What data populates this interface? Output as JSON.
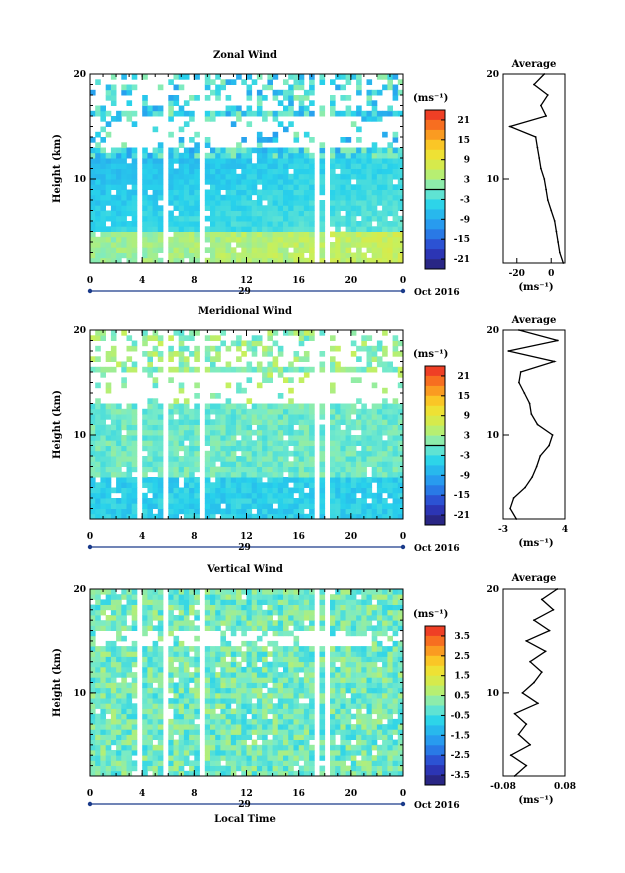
{
  "chart_data": [
    {
      "type": "heatmap",
      "title": "Zonal Wind",
      "ylabel": "Height (km)",
      "ylim": [
        2,
        20
      ],
      "xlim": [
        0,
        24
      ],
      "x_ticks": [
        "0",
        "4",
        "8",
        "12",
        "16",
        "20",
        "0"
      ],
      "y_ticks": [
        "10",
        "20"
      ],
      "date_labels": {
        "day": "29",
        "month": "Oct 2016"
      },
      "colorbar": {
        "unit": "(ms⁻¹)",
        "ticks": [
          "21",
          "15",
          "9",
          "3",
          "-3",
          "-9",
          "-15",
          "-21"
        ],
        "range": [
          -24,
          24
        ]
      },
      "profile": {
        "title": "Average",
        "unit": "(ms⁻¹)",
        "x_ticks": [
          "-20",
          "0"
        ],
        "xlim": [
          -28,
          8
        ],
        "y_ticks": [
          "10",
          "20"
        ],
        "heights": [
          2,
          3,
          4,
          5,
          6,
          7,
          8,
          9,
          10,
          11,
          12,
          13,
          14,
          15,
          16,
          17,
          18,
          19,
          20
        ],
        "values": [
          7,
          5,
          4,
          3,
          2,
          0,
          -2,
          -3,
          -4,
          -6,
          -7,
          -8,
          -9,
          -24,
          -3,
          -6,
          -2,
          -10,
          -4
        ]
      }
    },
    {
      "type": "heatmap",
      "title": "Meridional Wind",
      "ylabel": "Height (km)",
      "ylim": [
        2,
        20
      ],
      "xlim": [
        0,
        24
      ],
      "x_ticks": [
        "0",
        "4",
        "8",
        "12",
        "16",
        "20",
        "0"
      ],
      "y_ticks": [
        "10",
        "20"
      ],
      "date_labels": {
        "day": "29",
        "month": "Oct 2016"
      },
      "colorbar": {
        "unit": "(ms⁻¹)",
        "ticks": [
          "21",
          "15",
          "9",
          "3",
          "-3",
          "-9",
          "-15",
          "-21"
        ],
        "range": [
          -24,
          24
        ]
      },
      "profile": {
        "title": "Average",
        "unit": "(ms⁻¹)",
        "x_ticks": [
          "-3",
          "4"
        ],
        "xlim": [
          -3,
          4
        ],
        "y_ticks": [
          "10",
          "20"
        ],
        "heights": [
          2,
          3,
          4,
          5,
          6,
          7,
          8,
          9,
          10,
          11,
          12,
          13,
          14,
          15,
          16,
          17,
          18,
          19,
          20
        ],
        "values": [
          -1.5,
          -2.2,
          -1.8,
          -0.5,
          0.3,
          0.8,
          1.2,
          2.2,
          2.6,
          0.9,
          0.2,
          0.0,
          -0.6,
          -1.2,
          -1.0,
          2.8,
          -2.4,
          3.2,
          -1.2
        ]
      }
    },
    {
      "type": "heatmap",
      "title": "Vertical Wind",
      "ylabel": "Height (km)",
      "xlabel": "Local Time",
      "ylim": [
        2,
        20
      ],
      "xlim": [
        0,
        24
      ],
      "x_ticks": [
        "0",
        "4",
        "8",
        "12",
        "16",
        "20",
        "0"
      ],
      "y_ticks": [
        "10",
        "20"
      ],
      "date_labels": {
        "day": "29",
        "month": "Oct 2016"
      },
      "colorbar": {
        "unit": "(ms⁻¹)",
        "ticks": [
          "3.5",
          "2.5",
          "1.5",
          "0.5",
          "-0.5",
          "-1.5",
          "-2.5",
          "-3.5"
        ],
        "range": [
          -4,
          4
        ]
      },
      "profile": {
        "title": "Average",
        "unit": "(ms⁻¹)",
        "x_ticks": [
          "-0.08",
          "0.08"
        ],
        "xlim": [
          -0.08,
          0.08
        ],
        "y_ticks": [
          "10",
          "20"
        ],
        "heights": [
          2,
          3,
          4,
          5,
          6,
          7,
          8,
          9,
          10,
          11,
          12,
          13,
          14,
          15,
          16,
          17,
          18,
          19,
          20
        ],
        "values": [
          -0.05,
          -0.02,
          -0.06,
          -0.01,
          -0.04,
          -0.02,
          -0.05,
          0.01,
          -0.03,
          0.0,
          0.02,
          -0.01,
          0.03,
          -0.02,
          0.04,
          0.0,
          0.05,
          0.02,
          0.06
        ]
      }
    }
  ]
}
